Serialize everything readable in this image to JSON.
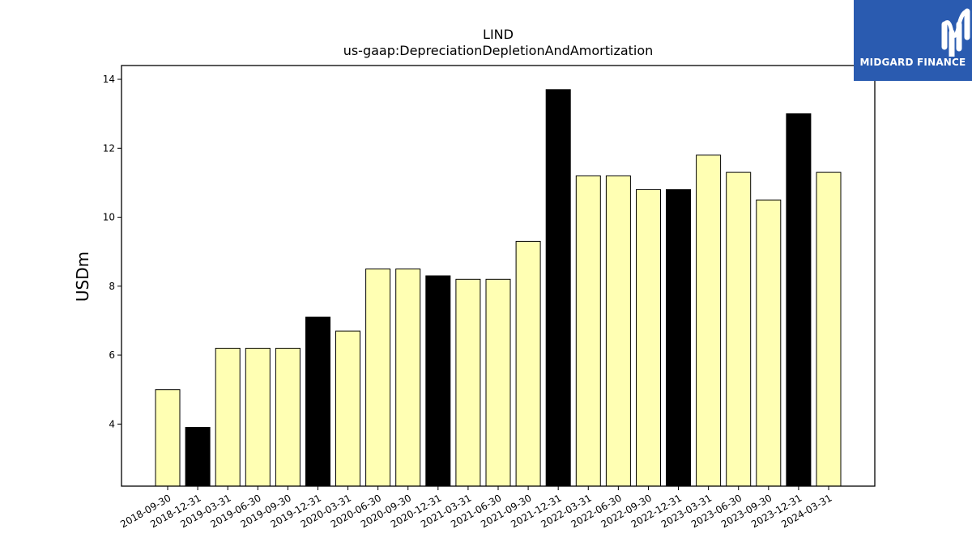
{
  "logo": {
    "name": "MIDGARD FINANCE"
  },
  "chart_data": {
    "type": "bar",
    "title": "LIND",
    "subtitle": "us-gaap:DepreciationDepletionAndAmortization",
    "xlabel": "",
    "ylabel": "USDm",
    "ylim": [
      2.2,
      14.4
    ],
    "yticks": [
      4,
      6,
      8,
      10,
      12,
      14
    ],
    "grid": false,
    "colors": {
      "default": "#ffffb3",
      "highlight": "#000000",
      "edge": "#000000"
    },
    "categories": [
      "2018-09-30",
      "2018-12-31",
      "2019-03-31",
      "2019-06-30",
      "2019-09-30",
      "2019-12-31",
      "2020-03-31",
      "2020-06-30",
      "2020-09-30",
      "2020-12-31",
      "2021-03-31",
      "2021-06-30",
      "2021-09-30",
      "2021-12-31",
      "2022-03-31",
      "2022-06-30",
      "2022-09-30",
      "2022-12-31",
      "2023-03-31",
      "2023-06-30",
      "2023-09-30",
      "2023-12-31",
      "2024-03-31"
    ],
    "values": [
      5.0,
      3.9,
      6.2,
      6.2,
      6.2,
      7.1,
      6.7,
      8.5,
      8.5,
      8.3,
      8.2,
      8.2,
      9.3,
      13.7,
      11.2,
      11.2,
      10.8,
      10.8,
      11.8,
      11.3,
      10.5,
      13.0,
      11.3
    ],
    "highlight": [
      false,
      true,
      false,
      false,
      false,
      true,
      false,
      false,
      false,
      true,
      false,
      false,
      false,
      true,
      false,
      false,
      false,
      true,
      false,
      false,
      false,
      true,
      false
    ]
  }
}
